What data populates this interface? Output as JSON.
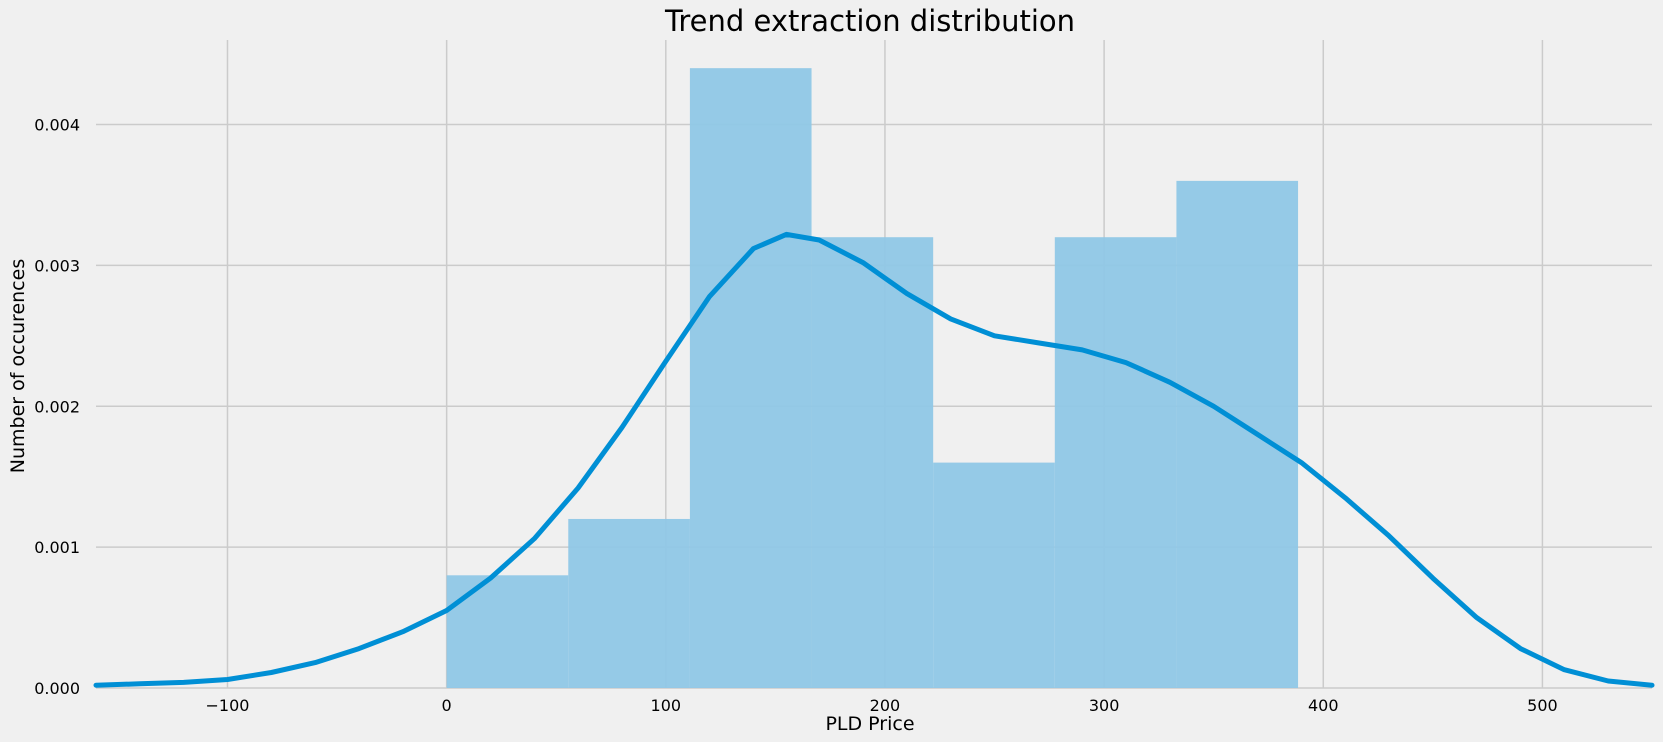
{
  "chart_data": {
    "type": "histogram",
    "title": "Trend extraction distribution",
    "xlabel": "PLD Price",
    "ylabel": "Number of occurences",
    "xlim": [
      -160,
      550
    ],
    "ylim": [
      0,
      0.0046
    ],
    "xticks": [
      -100,
      0,
      100,
      200,
      300,
      400,
      500
    ],
    "xtick_labels": [
      "−100",
      "0",
      "100",
      "200",
      "300",
      "400",
      "500"
    ],
    "yticks": [
      0,
      0.001,
      0.002,
      0.003,
      0.004
    ],
    "ytick_labels": [
      "0.000",
      "0.001",
      "0.002",
      "0.003",
      "0.004"
    ],
    "grid": true,
    "bins": [
      {
        "x0": 0,
        "x1": 55.5,
        "density": 0.0008
      },
      {
        "x0": 55.5,
        "x1": 111,
        "density": 0.0012
      },
      {
        "x0": 111,
        "x1": 166.5,
        "density": 0.0044
      },
      {
        "x0": 166.5,
        "x1": 222,
        "density": 0.0032
      },
      {
        "x0": 222,
        "x1": 277.5,
        "density": 0.0016
      },
      {
        "x0": 277.5,
        "x1": 333,
        "density": 0.0032
      },
      {
        "x0": 333,
        "x1": 388.5,
        "density": 0.0036
      }
    ],
    "kde": {
      "x": [
        -160,
        -140,
        -120,
        -100,
        -80,
        -60,
        -40,
        -20,
        0,
        20,
        40,
        60,
        80,
        100,
        120,
        140,
        155,
        170,
        190,
        210,
        230,
        250,
        270,
        290,
        310,
        330,
        350,
        370,
        390,
        410,
        430,
        450,
        470,
        490,
        510,
        530,
        550
      ],
      "y": [
        2e-05,
        3e-05,
        4e-05,
        6e-05,
        0.00011,
        0.00018,
        0.00028,
        0.0004,
        0.00055,
        0.00078,
        0.00106,
        0.00142,
        0.00185,
        0.00232,
        0.00278,
        0.00312,
        0.00322,
        0.00318,
        0.00302,
        0.0028,
        0.00262,
        0.0025,
        0.00245,
        0.0024,
        0.00231,
        0.00217,
        0.002,
        0.0018,
        0.0016,
        0.00135,
        0.00108,
        0.00078,
        0.0005,
        0.00028,
        0.00013,
        5e-05,
        2e-05
      ]
    },
    "colors": {
      "background": "#f0f0f0",
      "bar_fill": "#8fc7e6",
      "kde_line": "#008fd5",
      "grid": "#cbcbcb"
    }
  }
}
